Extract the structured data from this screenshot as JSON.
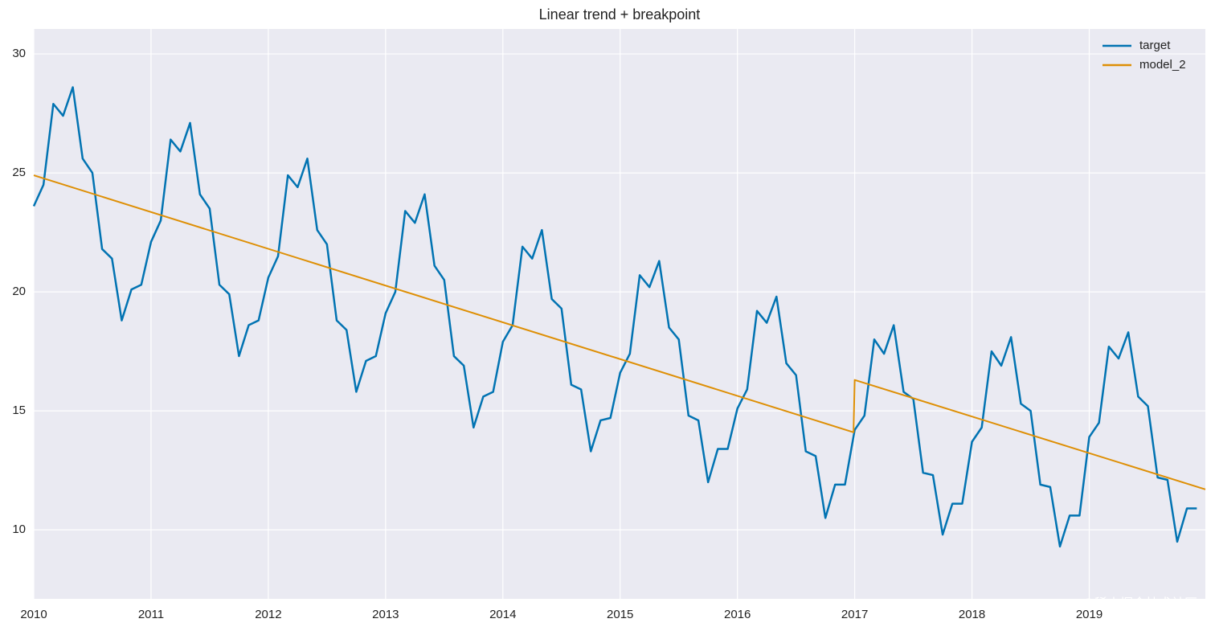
{
  "chart_data": {
    "type": "line",
    "title": "Linear trend + breakpoint",
    "xlim": [
      2010,
      2019.99
    ],
    "ylim": [
      7.1,
      31.05
    ],
    "xticks": [
      2010,
      2011,
      2012,
      2013,
      2014,
      2015,
      2016,
      2017,
      2018,
      2019
    ],
    "yticks": [
      10,
      15,
      20,
      25,
      30
    ],
    "grid": true,
    "legend": "upper right",
    "background": "#eaeaf2",
    "watermark": "@稀土掘金技术社区",
    "series": [
      {
        "name": "target",
        "color": "#0173b2",
        "x": [
          2010,
          2010.083,
          2010.167,
          2010.25,
          2010.333,
          2010.417,
          2010.5,
          2010.583,
          2010.667,
          2010.75,
          2010.833,
          2010.917,
          2011,
          2011.083,
          2011.167,
          2011.25,
          2011.333,
          2011.417,
          2011.5,
          2011.583,
          2011.667,
          2011.75,
          2011.833,
          2011.917,
          2012,
          2012.083,
          2012.167,
          2012.25,
          2012.333,
          2012.417,
          2012.5,
          2012.583,
          2012.667,
          2012.75,
          2012.833,
          2012.917,
          2013,
          2013.083,
          2013.167,
          2013.25,
          2013.333,
          2013.417,
          2013.5,
          2013.583,
          2013.667,
          2013.75,
          2013.833,
          2013.917,
          2014,
          2014.083,
          2014.167,
          2014.25,
          2014.333,
          2014.417,
          2014.5,
          2014.583,
          2014.667,
          2014.75,
          2014.833,
          2014.917,
          2015,
          2015.083,
          2015.167,
          2015.25,
          2015.333,
          2015.417,
          2015.5,
          2015.583,
          2015.667,
          2015.75,
          2015.833,
          2015.917,
          2016,
          2016.083,
          2016.167,
          2016.25,
          2016.333,
          2016.417,
          2016.5,
          2016.583,
          2016.667,
          2016.75,
          2016.833,
          2016.917,
          2017,
          2017.083,
          2017.167,
          2017.25,
          2017.333,
          2017.417,
          2017.5,
          2017.583,
          2017.667,
          2017.75,
          2017.833,
          2017.917,
          2018,
          2018.083,
          2018.167,
          2018.25,
          2018.333,
          2018.417,
          2018.5,
          2018.583,
          2018.667,
          2018.75,
          2018.833,
          2018.917,
          2019,
          2019.083,
          2019.167,
          2019.25,
          2019.333,
          2019.417,
          2019.5,
          2019.583,
          2019.667,
          2019.75,
          2019.833,
          2019.917
        ],
        "values": [
          23.6,
          24.5,
          27.9,
          27.4,
          28.6,
          25.6,
          25.0,
          21.8,
          21.4,
          18.8,
          20.1,
          20.3,
          22.1,
          23.0,
          26.4,
          25.9,
          27.1,
          24.1,
          23.5,
          20.3,
          19.9,
          17.3,
          18.6,
          18.8,
          20.6,
          21.5,
          24.9,
          24.4,
          25.6,
          22.6,
          22.0,
          18.8,
          18.4,
          15.8,
          17.1,
          17.3,
          19.1,
          20.0,
          23.4,
          22.9,
          24.1,
          21.1,
          20.5,
          17.3,
          16.9,
          14.3,
          15.6,
          15.8,
          17.9,
          18.6,
          21.9,
          21.4,
          22.6,
          19.7,
          19.3,
          16.1,
          15.9,
          13.3,
          14.6,
          14.7,
          16.6,
          17.4,
          20.7,
          20.2,
          21.3,
          18.5,
          18.0,
          14.8,
          14.6,
          12.0,
          13.4,
          13.4,
          15.1,
          15.9,
          19.2,
          18.7,
          19.8,
          17.0,
          16.5,
          13.3,
          13.1,
          10.5,
          11.9,
          11.9,
          14.2,
          14.8,
          18.0,
          17.4,
          18.6,
          15.8,
          15.5,
          12.4,
          12.3,
          9.8,
          11.1,
          11.1,
          13.7,
          14.3,
          17.5,
          16.9,
          18.1,
          15.3,
          15.0,
          11.9,
          11.8,
          9.3,
          10.6,
          10.6,
          13.9,
          14.5,
          17.7,
          17.2,
          18.3,
          15.6,
          15.2,
          12.2,
          12.1,
          9.5,
          10.9,
          10.9
        ]
      },
      {
        "name": "model_2",
        "color": "#de8f05",
        "x": [
          2010,
          2016.99,
          2017,
          2019.99
        ],
        "values": [
          24.9,
          14.1,
          16.3,
          11.7
        ]
      }
    ]
  }
}
